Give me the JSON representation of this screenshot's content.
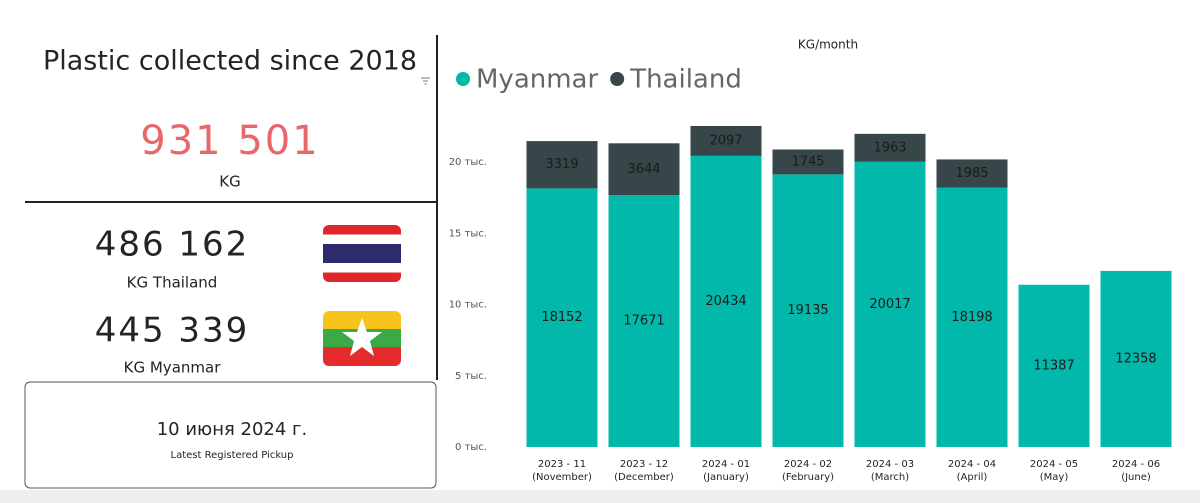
{
  "summary": {
    "title": "Plastic collected since 2018",
    "total": "931 501",
    "total_unit": "KG",
    "thailand_total": "486 162",
    "thailand_label": "KG Thailand",
    "myanmar_total": "445 339",
    "myanmar_label": "KG Myanmar"
  },
  "pickup": {
    "date": "10 июня 2024 г.",
    "label": "Latest Registered Pickup"
  },
  "chart_data": {
    "type": "stacked_bar",
    "title": "KG/month",
    "categories": [
      "2023 - 11 (November)",
      "2023 - 12 (December)",
      "2024 - 01 (January)",
      "2024 - 02 (February)",
      "2024 - 03 (March)",
      "2024 - 04 (April)",
      "2024 - 05 (May)",
      "2024 - 06 (June)"
    ],
    "series": [
      {
        "name": "Myanmar",
        "color": "#01b8aa",
        "values": [
          18152,
          17671,
          20434,
          19135,
          20017,
          18198,
          11387,
          12358
        ]
      },
      {
        "name": "Thailand",
        "color": "#374649",
        "values": [
          3319,
          3644,
          2097,
          1745,
          1963,
          1985,
          null,
          null
        ]
      }
    ],
    "ylim": [
      0,
      22600
    ],
    "yticks": [
      {
        "value": 0,
        "label": "0 тыс."
      },
      {
        "value": 5000,
        "label": "5 тыс."
      },
      {
        "value": 10000,
        "label": "10 тыс."
      },
      {
        "value": 15000,
        "label": "15 тыс."
      },
      {
        "value": 20000,
        "label": "20 тыс."
      }
    ],
    "grid": false,
    "legend": "top-left"
  }
}
